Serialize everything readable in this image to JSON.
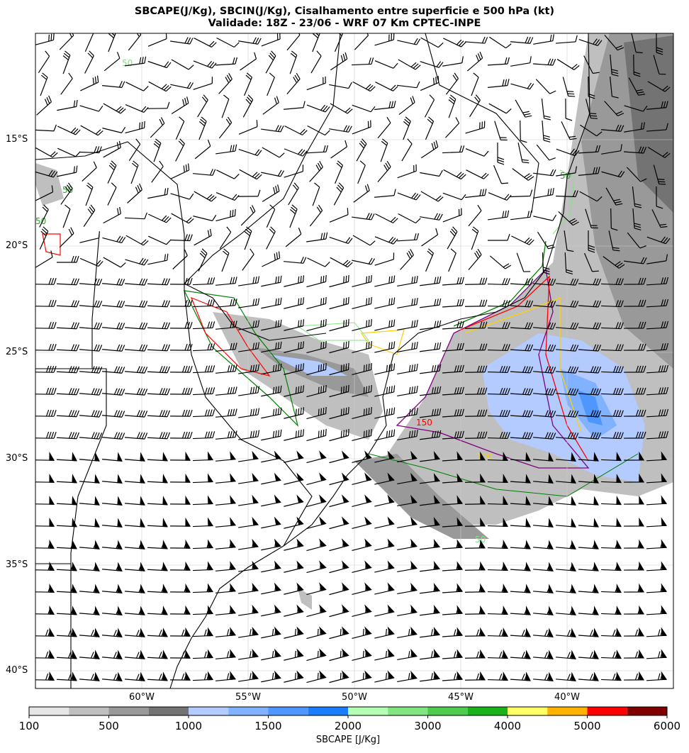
{
  "title": {
    "line1": "SBCAPE(J/Kg), SBCIN(J/Kg), Cisalhamento entre superficie e 500 hPa (kt)",
    "line2": "Validade: 18Z - 23/06 - WRF 07 Km CPTEC-INPE"
  },
  "map": {
    "lat_labels": [
      "15°S",
      "20°S",
      "25°S",
      "30°S",
      "35°S",
      "40°S"
    ],
    "lon_labels": [
      "60°W",
      "55°W",
      "50°W",
      "45°W",
      "40°W"
    ],
    "contour_labels": [
      "50",
      "50",
      "50",
      "150",
      "100",
      "50",
      "50"
    ]
  },
  "colorbar": {
    "label": "SBCAPE [J/Kg]",
    "ticks": [
      "100",
      "500",
      "1000",
      "1500",
      "2000",
      "3000",
      "4000",
      "5000",
      "6000"
    ],
    "colors": [
      "#e6e6e6",
      "#bfbfbf",
      "#999999",
      "#737373",
      "#b3cbff",
      "#80b2ff",
      "#4d97ff",
      "#1a7cff",
      "#b3ffb3",
      "#80e680",
      "#4dcc4d",
      "#19b319",
      "#ffff66",
      "#ffb300",
      "#ff0000",
      "#800000"
    ]
  }
}
